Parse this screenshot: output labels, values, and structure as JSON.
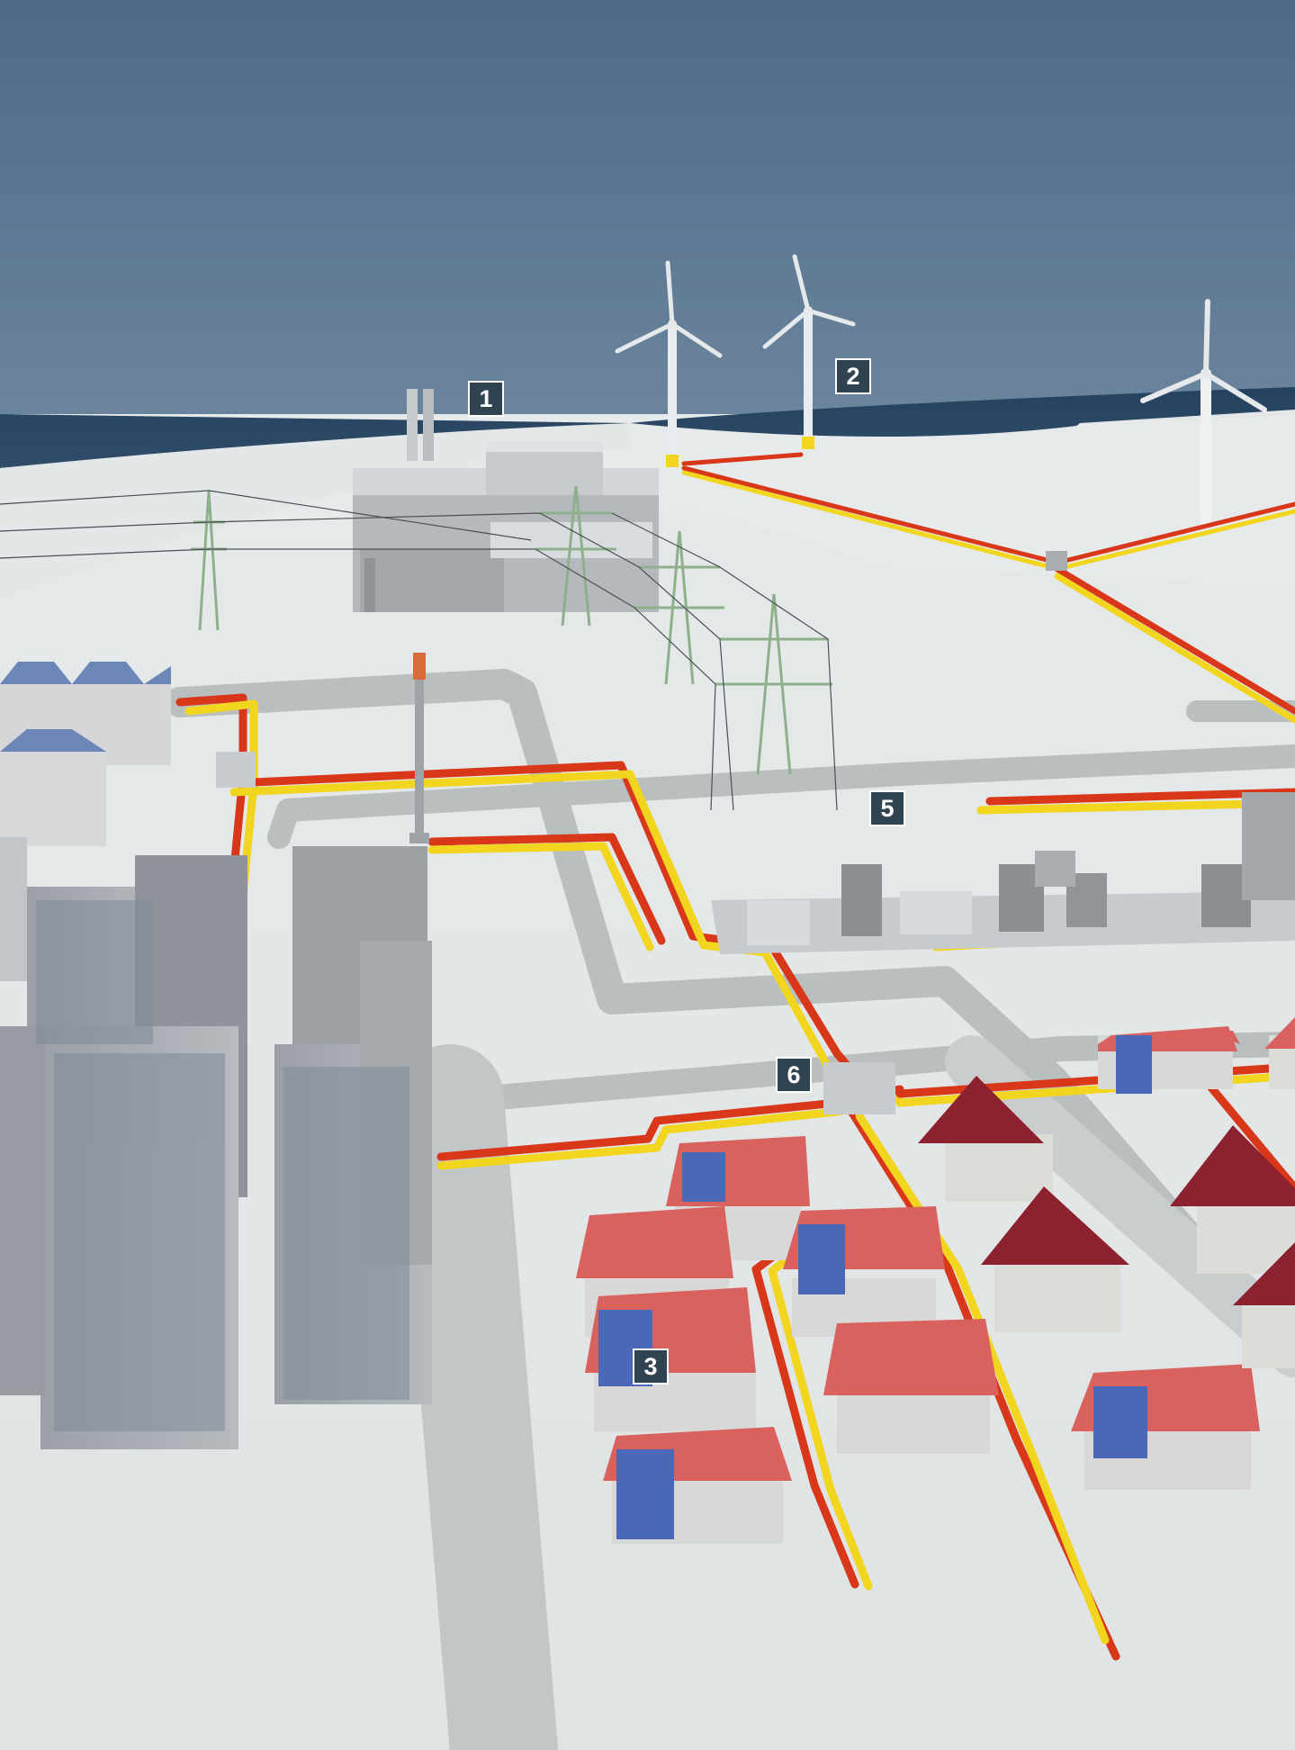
{
  "markers": {
    "m1": "1",
    "m2": "2",
    "m3": "3",
    "m5": "5",
    "m6": "6"
  },
  "colors": {
    "sky": "#4e6b86",
    "sea": "#2a4866",
    "ground": "#dde2e2",
    "road": "#b7bcbd",
    "cable_red": "#d8371a",
    "cable_yellow": "#f2d51e",
    "roof_red": "#d9625f",
    "roof_dark": "#8c2130",
    "solar": "#4a67b8",
    "marker_bg": "#2f4450",
    "pylon": "#8cb08a"
  },
  "icons": [
    "wind-turbine-icon",
    "power-plant-icon",
    "pylon-icon",
    "house-icon",
    "solar-panel-icon",
    "substation-icon",
    "distribution-box-icon"
  ]
}
